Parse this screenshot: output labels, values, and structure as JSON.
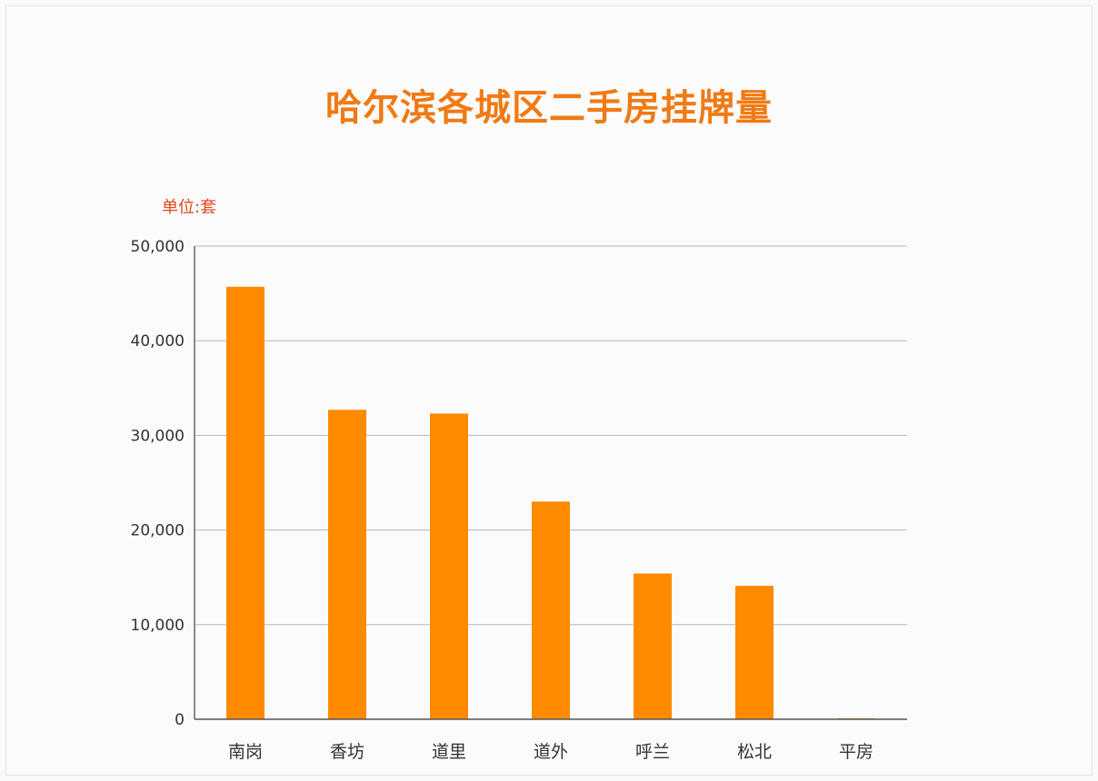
{
  "chart_data": {
    "type": "bar",
    "title": "哈尔滨各城区二手房挂牌量",
    "unit_label": "单位:套",
    "categories": [
      "南岗",
      "香坊",
      "道里",
      "道外",
      "呼兰",
      "松北",
      "平房"
    ],
    "values": [
      45700,
      32700,
      32300,
      23000,
      15400,
      14100,
      100
    ],
    "ylim": [
      0,
      50000
    ],
    "yticks": [
      "0",
      "10,000",
      "20,000",
      "30,000",
      "40,000",
      "50,000"
    ],
    "grid": true,
    "bar_color": "#ff8a00",
    "title_color": "#f07a14"
  }
}
